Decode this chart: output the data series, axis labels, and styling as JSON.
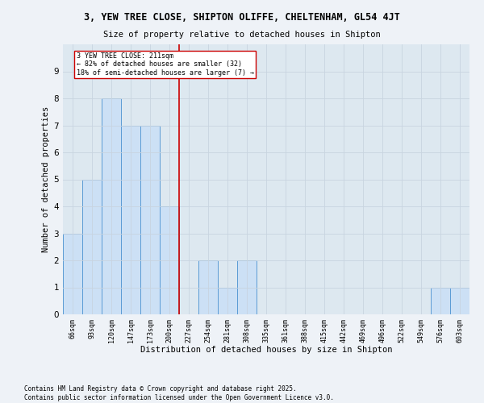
{
  "title1": "3, YEW TREE CLOSE, SHIPTON OLIFFE, CHELTENHAM, GL54 4JT",
  "title2": "Size of property relative to detached houses in Shipton",
  "xlabel": "Distribution of detached houses by size in Shipton",
  "ylabel": "Number of detached properties",
  "categories": [
    "66sqm",
    "93sqm",
    "120sqm",
    "147sqm",
    "173sqm",
    "200sqm",
    "227sqm",
    "254sqm",
    "281sqm",
    "308sqm",
    "335sqm",
    "361sqm",
    "388sqm",
    "415sqm",
    "442sqm",
    "469sqm",
    "496sqm",
    "522sqm",
    "549sqm",
    "576sqm",
    "603sqm"
  ],
  "values": [
    3,
    5,
    8,
    7,
    7,
    4,
    0,
    2,
    1,
    2,
    0,
    0,
    0,
    0,
    0,
    0,
    0,
    0,
    0,
    1,
    1
  ],
  "bar_color": "#cce0f5",
  "bar_edge_color": "#5b9bd5",
  "reference_line_x": 5.5,
  "reference_label": "3 YEW TREE CLOSE: 211sqm",
  "annotation_line1": "← 82% of detached houses are smaller (32)",
  "annotation_line2": "18% of semi-detached houses are larger (7) →",
  "annotation_box_color": "#ffffff",
  "annotation_box_edge": "#cc0000",
  "ref_line_color": "#cc0000",
  "ylim": [
    0,
    10
  ],
  "yticks": [
    0,
    1,
    2,
    3,
    4,
    5,
    6,
    7,
    8,
    9,
    10
  ],
  "grid_color": "#c8d4e0",
  "bg_color": "#dde8f0",
  "fig_color": "#eef2f7",
  "footer1": "Contains HM Land Registry data © Crown copyright and database right 2025.",
  "footer2": "Contains public sector information licensed under the Open Government Licence v3.0."
}
